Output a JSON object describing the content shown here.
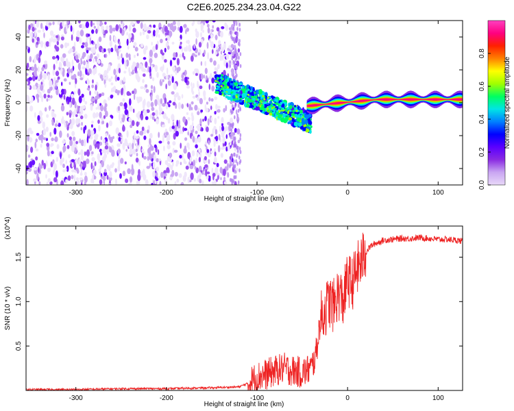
{
  "title": "C2E6.2025.234.23.04.G22",
  "chart_data": [
    {
      "type": "heatmap",
      "xlabel": "Height of straight line (km)",
      "ylabel": "Frequency (Hz)",
      "xlim": [
        -355,
        127
      ],
      "ylim": [
        -50,
        50
      ],
      "xticks": [
        -300,
        -200,
        -100,
        0,
        100
      ],
      "yticks": [
        -40,
        -20,
        0,
        20,
        40
      ],
      "colorbar": {
        "label": "Normalized spectral amplitude",
        "range": [
          0,
          1
        ],
        "ticks": [
          "0.0",
          "0.2",
          "0.4",
          "0.6",
          "0.8"
        ],
        "colors": [
          "#e8d8f8",
          "#c9a6f2",
          "#8a2be2",
          "#5a00ff",
          "#0000ff",
          "#0080ff",
          "#00e5e5",
          "#00ff60",
          "#a0ff00",
          "#ffff00",
          "#ff8000",
          "#ff2000",
          "#ff0080",
          "#ff40c0"
        ]
      },
      "regions": [
        {
          "x_range": [
            -355,
            -120
          ],
          "f_range": [
            -50,
            50
          ],
          "description_amplitude": "noise 0.0-0.3"
        },
        {
          "x_range": [
            -145,
            -40
          ],
          "f_start": 12,
          "f_end": -12,
          "spread_hz": 12,
          "amplitude": "0.2-0.5"
        },
        {
          "x_range": [
            -45,
            127
          ],
          "f_start": -2,
          "f_end": 2,
          "spread_hz": 3,
          "amplitude": "0.6-1.0"
        }
      ]
    },
    {
      "type": "line",
      "xlabel": "Height of straight line (km)",
      "ylabel": "SNR (10 * v/v)",
      "y_multiplier": "(x10^4)",
      "xlim": [
        -355,
        127
      ],
      "ylim": [
        0,
        1.85
      ],
      "xticks": [
        -300,
        -200,
        -100,
        0,
        100
      ],
      "yticks": [
        "0.5",
        "1.0",
        "1.5"
      ],
      "color": "#ee2222",
      "series": [
        {
          "x": [
            -355,
            -300,
            -250,
            -200,
            -150,
            -120,
            -110,
            -100,
            -90,
            -80,
            -70,
            -60,
            -50,
            -40,
            -35,
            -30,
            -25,
            -20,
            -15,
            -10,
            -5,
            0,
            5,
            10,
            15,
            20,
            25,
            30,
            40,
            50,
            60,
            70,
            80,
            90,
            100,
            110,
            120,
            127
          ],
          "y": [
            0.01,
            0.01,
            0.02,
            0.02,
            0.03,
            0.04,
            0.08,
            0.15,
            0.18,
            0.22,
            0.25,
            0.22,
            0.2,
            0.25,
            0.4,
            0.8,
            0.9,
            1.0,
            0.95,
            1.1,
            1.0,
            1.25,
            1.2,
            1.35,
            1.45,
            1.55,
            1.62,
            1.65,
            1.69,
            1.7,
            1.71,
            1.71,
            1.72,
            1.71,
            1.7,
            1.7,
            1.69,
            1.68
          ]
        }
      ]
    }
  ]
}
